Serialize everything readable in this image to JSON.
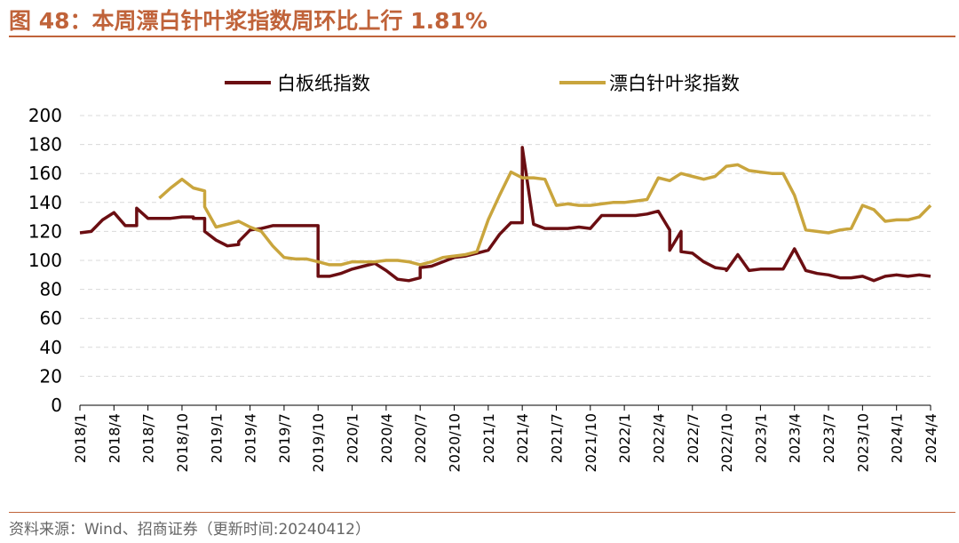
{
  "title": "图 48：本周漂白针叶浆指数周环比上行 1.81%",
  "source": "资料来源：Wind、招商证券（更新时间:20240412）",
  "colors": {
    "accent": "#c0633a",
    "series1": "#6b0e12",
    "series2": "#c9a53d",
    "grid": "#d9d9d9"
  },
  "chart_data": {
    "type": "line",
    "title": "",
    "xlabel": "",
    "ylabel": "",
    "ylim": [
      0,
      200
    ],
    "yticks": [
      "0",
      "20",
      "40",
      "60",
      "80",
      "100",
      "120",
      "140",
      "160",
      "180",
      "200"
    ],
    "xlim": [
      "2018/1",
      "2024/4"
    ],
    "xticks": [
      "2018/1",
      "2018/4",
      "2018/7",
      "2018/10",
      "2019/1",
      "2019/4",
      "2019/7",
      "2019/10",
      "2020/1",
      "2020/4",
      "2020/7",
      "2020/10",
      "2021/1",
      "2021/4",
      "2021/7",
      "2021/10",
      "2022/1",
      "2022/4",
      "2022/7",
      "2022/10",
      "2023/1",
      "2023/4",
      "2023/7",
      "2023/10",
      "2024/1",
      "2024/4"
    ],
    "grid": true,
    "legend": "top",
    "series": [
      {
        "name": "白板纸指数",
        "color": "#6b0e12",
        "x": [
          "2018/1",
          "2018/2",
          "2018/3",
          "2018/4",
          "2018/5",
          "2018/6",
          "2018/6",
          "2018/7",
          "2018/8",
          "2018/9",
          "2018/10",
          "2018/11",
          "2018/11",
          "2018/12",
          "2018/12",
          "2019/1",
          "2019/2",
          "2019/3",
          "2019/3",
          "2019/4",
          "2019/5",
          "2019/6",
          "2019/7",
          "2019/8",
          "2019/9",
          "2019/10",
          "2019/10",
          "2019/11",
          "2019/12",
          "2020/1",
          "2020/2",
          "2020/3",
          "2020/4",
          "2020/5",
          "2020/6",
          "2020/7",
          "2020/7",
          "2020/8",
          "2020/9",
          "2020/10",
          "2020/11",
          "2020/12",
          "2021/1",
          "2021/2",
          "2021/3",
          "2021/4",
          "2021/4",
          "2021/5",
          "2021/5",
          "2021/6",
          "2021/7",
          "2021/8",
          "2021/9",
          "2021/10",
          "2021/11",
          "2021/12",
          "2022/1",
          "2022/2",
          "2022/3",
          "2022/4",
          "2022/4",
          "2022/5",
          "2022/5",
          "2022/6",
          "2022/6",
          "2022/7",
          "2022/8",
          "2022/9",
          "2022/10",
          "2022/10",
          "2022/11",
          "2022/12",
          "2023/1",
          "2023/2",
          "2023/3",
          "2023/3",
          "2023/4",
          "2023/5",
          "2023/6",
          "2023/7",
          "2023/8",
          "2023/9",
          "2023/10",
          "2023/11",
          "2023/12",
          "2024/1",
          "2024/2",
          "2024/3",
          "2024/4"
        ],
        "values": [
          119,
          120,
          128,
          133,
          124,
          124,
          136,
          129,
          129,
          129,
          130,
          130,
          129,
          129,
          120,
          114,
          110,
          111,
          113,
          121,
          122,
          124,
          124,
          124,
          124,
          124,
          89,
          89,
          91,
          94,
          96,
          98,
          93,
          87,
          86,
          88,
          95,
          96,
          99,
          102,
          103,
          105,
          107,
          118,
          126,
          126,
          178,
          125,
          125,
          122,
          122,
          122,
          123,
          122,
          131,
          131,
          131,
          131,
          132,
          134,
          134,
          121,
          107,
          120,
          106,
          105,
          99,
          95,
          94,
          93,
          104,
          93,
          94,
          94,
          94,
          94,
          108,
          93,
          91,
          90,
          88,
          88,
          89,
          86,
          89,
          90,
          89,
          90,
          89
        ]
      },
      {
        "name": "漂白针叶浆指数",
        "color": "#c9a53d",
        "x": [
          "2018/8",
          "2018/9",
          "2018/10",
          "2018/11",
          "2018/12",
          "2018/12",
          "2019/1",
          "2019/2",
          "2019/3",
          "2019/4",
          "2019/5",
          "2019/6",
          "2019/7",
          "2019/8",
          "2019/9",
          "2019/10",
          "2019/11",
          "2019/12",
          "2020/1",
          "2020/2",
          "2020/3",
          "2020/4",
          "2020/5",
          "2020/6",
          "2020/7",
          "2020/8",
          "2020/9",
          "2020/10",
          "2020/11",
          "2020/12",
          "2021/1",
          "2021/2",
          "2021/3",
          "2021/4",
          "2021/5",
          "2021/6",
          "2021/7",
          "2021/8",
          "2021/9",
          "2021/10",
          "2021/11",
          "2021/12",
          "2022/1",
          "2022/2",
          "2022/3",
          "2022/4",
          "2022/5",
          "2022/6",
          "2022/7",
          "2022/8",
          "2022/9",
          "2022/10",
          "2022/11",
          "2022/12",
          "2023/1",
          "2023/2",
          "2023/3",
          "2023/4",
          "2023/5",
          "2023/6",
          "2023/7",
          "2023/8",
          "2023/9",
          "2023/10",
          "2023/11",
          "2023/12",
          "2024/1",
          "2024/2",
          "2024/3",
          "2024/4"
        ],
        "values": [
          143,
          150,
          156,
          150,
          148,
          137,
          123,
          125,
          127,
          123,
          120,
          110,
          102,
          101,
          101,
          99,
          97,
          97,
          99,
          99,
          99,
          100,
          100,
          99,
          97,
          99,
          102,
          103,
          104,
          106,
          128,
          145,
          161,
          157,
          157,
          156,
          138,
          139,
          138,
          138,
          139,
          140,
          140,
          141,
          142,
          157,
          155,
          160,
          158,
          156,
          158,
          165,
          166,
          162,
          161,
          160,
          160,
          145,
          121,
          120,
          119,
          121,
          122,
          138,
          135,
          127,
          128,
          128,
          130,
          138
        ]
      }
    ]
  }
}
